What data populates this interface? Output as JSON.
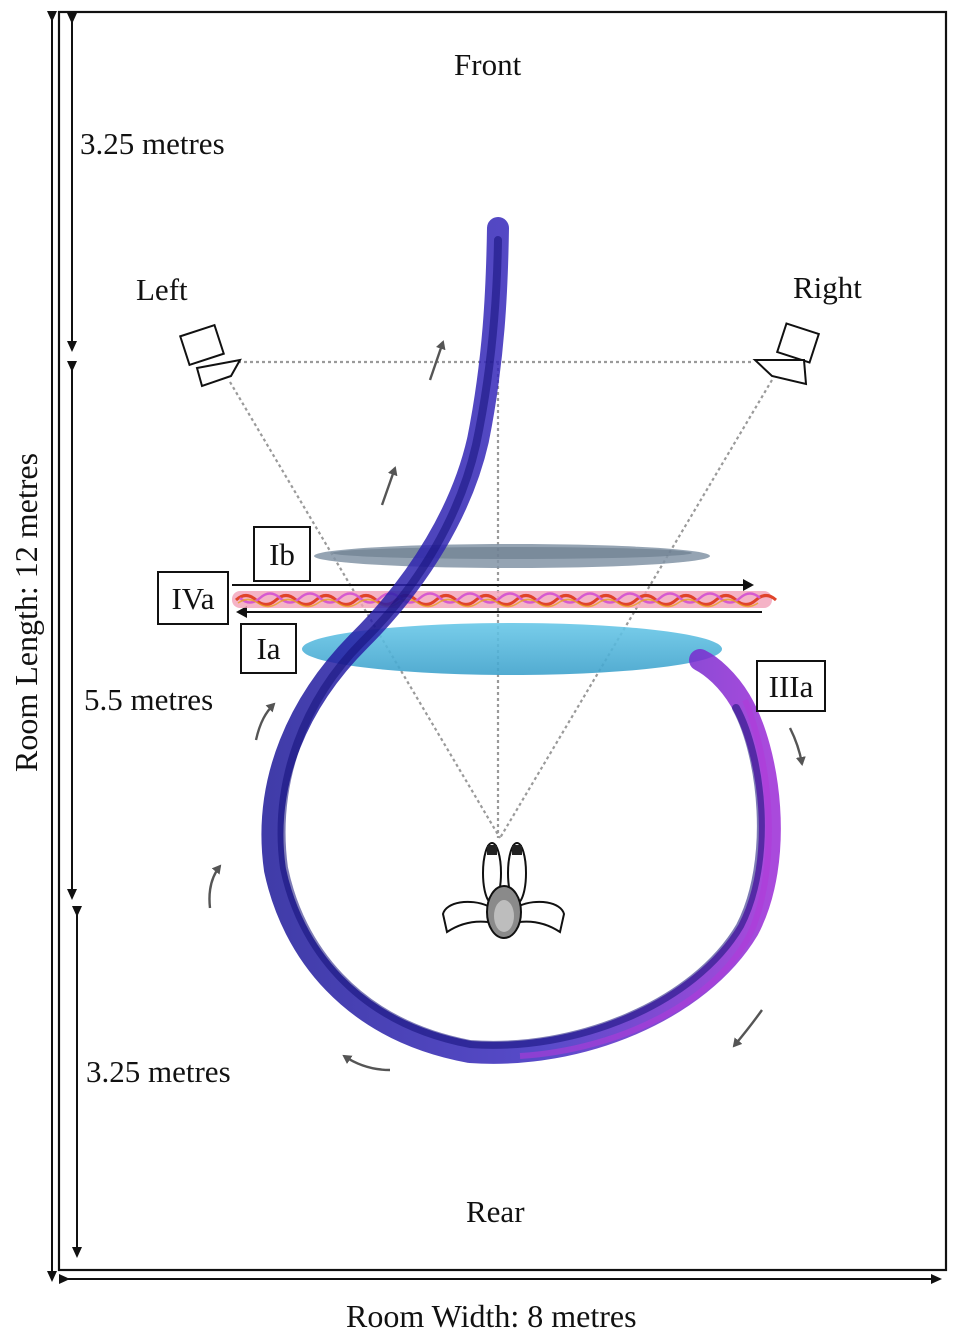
{
  "room": {
    "front": "Front",
    "rear": "Rear",
    "length_label": "Room Length: 12  metres",
    "width_label": "Room Width: 8 metres"
  },
  "sections": {
    "front_depth": "3.25 metres",
    "middle_depth": "5.5 metres",
    "rear_depth": "3.25 metres"
  },
  "speakers": {
    "left": "Left",
    "right": "Right"
  },
  "zones": {
    "ib": "Ib",
    "iva": "IVa",
    "ia": "Ia",
    "iiia": "IIIa"
  },
  "colors": {
    "trajectory_dark": "#2a1fa8",
    "trajectory_light": "#8a2bd0",
    "zone_ib": "#7b8da0",
    "zone_ia": "#4fb3d6",
    "zone_iva_red": "#e0442a",
    "zone_iva_pink": "#e070c8",
    "sight_lines": "#9a9a9a"
  }
}
